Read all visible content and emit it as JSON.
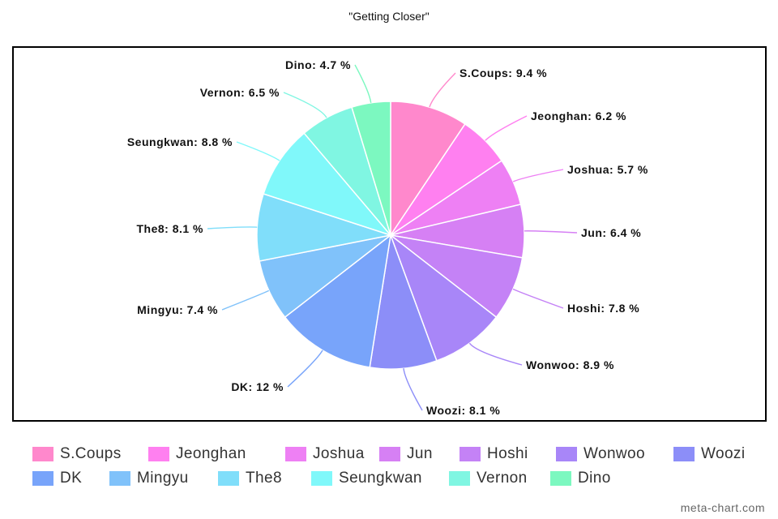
{
  "chart_data": {
    "type": "pie",
    "title": "\"Getting Closer\"",
    "legend_position": "bottom",
    "slices": [
      {
        "label": "S.Coups",
        "value": 9.4,
        "display": "S.Coups: 9.4 %",
        "color": "#FF88CC"
      },
      {
        "label": "Jeonghan",
        "value": 6.2,
        "display": "Jeonghan: 6.2 %",
        "color": "#FF80F0"
      },
      {
        "label": "Joshua",
        "value": 5.7,
        "display": "Joshua: 5.7 %",
        "color": "#EE80F4"
      },
      {
        "label": "Jun",
        "value": 6.4,
        "display": "Jun: 6.4 %",
        "color": "#D680F4"
      },
      {
        "label": "Hoshi",
        "value": 7.8,
        "display": "Hoshi: 7.8 %",
        "color": "#C482F6"
      },
      {
        "label": "Wonwoo",
        "value": 8.9,
        "display": "Wonwoo: 8.9 %",
        "color": "#A886F8"
      },
      {
        "label": "Woozi",
        "value": 8.1,
        "display": "Woozi: 8.1 %",
        "color": "#8C8EF8"
      },
      {
        "label": "DK",
        "value": 12,
        "display": "DK: 12 %",
        "color": "#78A4FA"
      },
      {
        "label": "Mingyu",
        "value": 7.4,
        "display": "Mingyu: 7.4 %",
        "color": "#80C2FA"
      },
      {
        "label": "The8",
        "value": 8.1,
        "display": "The8: 8.1 %",
        "color": "#80DEFA"
      },
      {
        "label": "Seungkwan",
        "value": 8.8,
        "display": "Seungkwan: 8.8 %",
        "color": "#80F8FA"
      },
      {
        "label": "Vernon",
        "value": 6.5,
        "display": "Vernon: 6.5 %",
        "color": "#80F6E2"
      },
      {
        "label": "Dino",
        "value": 4.7,
        "display": "Dino: 4.7 %",
        "color": "#7CF8C0"
      }
    ]
  },
  "watermark": "meta-chart.com"
}
